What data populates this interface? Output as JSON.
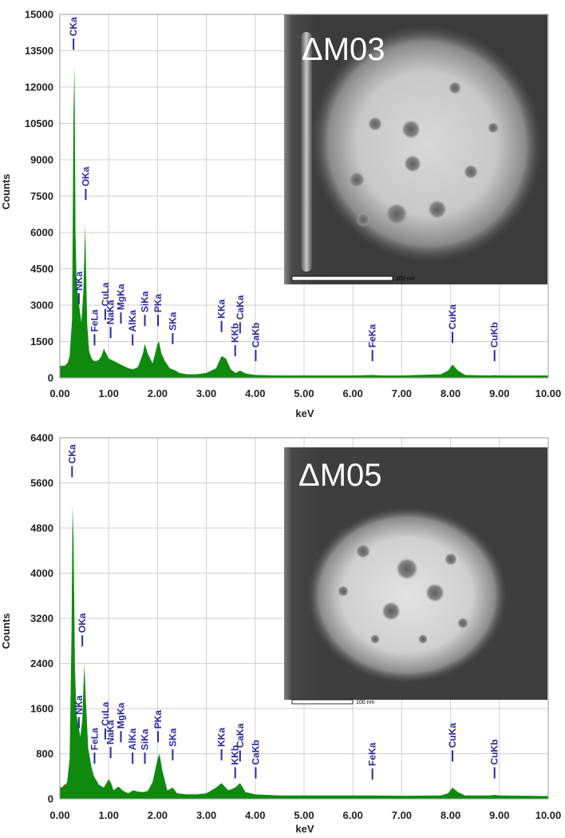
{
  "colors": {
    "spectrum_main": "#0f8a0f",
    "spectrum_background": "#e01010",
    "peak_label": "#2a2aa0",
    "grid": "#cfcfcf",
    "inset_bg": "#3a3a3a"
  },
  "chart_data": [
    {
      "type": "area",
      "xlabel": "keV",
      "ylabel": "Counts",
      "xlim": [
        0,
        10
      ],
      "ylim": [
        0,
        15000
      ],
      "x_ticks": [
        "0.00",
        "1.00",
        "2.00",
        "3.00",
        "4.00",
        "5.00",
        "6.00",
        "7.00",
        "8.00",
        "9.00",
        "10.00"
      ],
      "y_ticks": [
        "0",
        "1500",
        "3000",
        "4500",
        "6000",
        "7500",
        "9000",
        "10500",
        "12000",
        "13500",
        "15000"
      ],
      "grid": true,
      "inset": {
        "label": "ΔM03",
        "scale_bar": "100 nm"
      },
      "spectrum": {
        "x": [
          0.0,
          0.1,
          0.15,
          0.2,
          0.25,
          0.28,
          0.3,
          0.32,
          0.34,
          0.36,
          0.4,
          0.44,
          0.48,
          0.52,
          0.54,
          0.56,
          0.6,
          0.65,
          0.7,
          0.75,
          0.8,
          0.85,
          0.9,
          0.95,
          1.0,
          1.05,
          1.1,
          1.2,
          1.25,
          1.3,
          1.4,
          1.5,
          1.6,
          1.7,
          1.74,
          1.8,
          1.9,
          2.0,
          2.03,
          2.08,
          2.15,
          2.25,
          2.31,
          2.37,
          2.45,
          2.6,
          2.8,
          3.0,
          3.2,
          3.31,
          3.4,
          3.5,
          3.6,
          3.69,
          3.8,
          4.0,
          4.5,
          5.0,
          6.0,
          6.4,
          6.6,
          7.0,
          7.8,
          7.95,
          8.04,
          8.15,
          8.3,
          8.8,
          8.9,
          9.0,
          9.5,
          10.0
        ],
        "y": [
          500,
          500,
          550,
          900,
          2400,
          11000,
          12900,
          6000,
          4200,
          3600,
          2900,
          2300,
          3500,
          6300,
          4100,
          2200,
          1100,
          800,
          700,
          700,
          750,
          900,
          1200,
          1000,
          800,
          750,
          700,
          600,
          550,
          500,
          400,
          350,
          450,
          1000,
          1400,
          1000,
          600,
          1400,
          1500,
          1000,
          700,
          400,
          350,
          300,
          200,
          150,
          150,
          200,
          400,
          900,
          800,
          350,
          200,
          300,
          180,
          120,
          100,
          100,
          100,
          120,
          100,
          100,
          150,
          300,
          550,
          300,
          120,
          100,
          110,
          100,
          100,
          100
        ]
      },
      "background": {
        "x": [
          0.0,
          0.1,
          0.15,
          0.2,
          0.3,
          0.5,
          1.0,
          2.0,
          3.0,
          4.0,
          5.0,
          6.0,
          7.0,
          8.0,
          9.0,
          10.0
        ],
        "y": [
          400,
          500,
          600,
          400,
          300,
          250,
          150,
          120,
          100,
          90,
          80,
          70,
          65,
          70,
          60,
          55
        ]
      },
      "peak_labels": [
        {
          "text": "CKa",
          "x": 0.28,
          "y": 14000
        },
        {
          "text": "OKa",
          "x": 0.53,
          "y": 7800
        },
        {
          "text": "NKa",
          "x": 0.39,
          "y": 3500
        },
        {
          "text": "CuLa",
          "x": 0.93,
          "y": 2850
        },
        {
          "text": "MgKa",
          "x": 1.25,
          "y": 2700
        },
        {
          "text": "FeLa",
          "x": 0.71,
          "y": 1800
        },
        {
          "text": "NaKa",
          "x": 1.04,
          "y": 2100
        },
        {
          "text": "AlKa",
          "x": 1.49,
          "y": 1800
        },
        {
          "text": "SiKa",
          "x": 1.74,
          "y": 2600
        },
        {
          "text": "PKa",
          "x": 2.01,
          "y": 2600
        },
        {
          "text": "SKa",
          "x": 2.31,
          "y": 1850
        },
        {
          "text": "KKa",
          "x": 3.31,
          "y": 2350
        },
        {
          "text": "KKb",
          "x": 3.59,
          "y": 1350
        },
        {
          "text": "CaKa",
          "x": 3.69,
          "y": 2300
        },
        {
          "text": "CaKb",
          "x": 4.01,
          "y": 1150
        },
        {
          "text": "FeKa",
          "x": 6.4,
          "y": 1150
        },
        {
          "text": "CuKa",
          "x": 8.04,
          "y": 1900
        },
        {
          "text": "CuKb",
          "x": 8.9,
          "y": 1150
        }
      ]
    },
    {
      "type": "area",
      "xlabel": "keV",
      "ylabel": "Counts",
      "xlim": [
        0,
        10
      ],
      "ylim": [
        0,
        6400
      ],
      "x_ticks": [
        "0.00",
        "1.00",
        "2.00",
        "3.00",
        "4.00",
        "5.00",
        "6.00",
        "7.00",
        "8.00",
        "9.00",
        "10.00"
      ],
      "y_ticks": [
        "0",
        "800",
        "1600",
        "2400",
        "3200",
        "4000",
        "4800",
        "5600",
        "6400"
      ],
      "grid": true,
      "inset": {
        "label": "ΔM05",
        "scale_bar": "100 nm"
      },
      "spectrum": {
        "x": [
          0.0,
          0.1,
          0.15,
          0.2,
          0.24,
          0.26,
          0.28,
          0.31,
          0.34,
          0.38,
          0.42,
          0.46,
          0.5,
          0.53,
          0.58,
          0.65,
          0.7,
          0.8,
          0.9,
          1.0,
          1.05,
          1.1,
          1.2,
          1.3,
          1.4,
          1.5,
          1.6,
          1.7,
          1.8,
          1.9,
          2.0,
          2.04,
          2.1,
          2.2,
          2.31,
          2.4,
          2.6,
          2.8,
          3.0,
          3.2,
          3.31,
          3.45,
          3.59,
          3.69,
          3.8,
          4.0,
          4.5,
          5.0,
          6.0,
          6.4,
          7.0,
          7.8,
          7.95,
          8.04,
          8.15,
          8.3,
          8.8,
          8.9,
          9.0,
          10.0
        ],
        "y": [
          200,
          220,
          300,
          700,
          3000,
          5200,
          4600,
          2300,
          1500,
          1300,
          1100,
          1400,
          2400,
          1800,
          900,
          550,
          400,
          250,
          200,
          350,
          280,
          150,
          220,
          140,
          100,
          150,
          130,
          120,
          140,
          300,
          700,
          800,
          500,
          150,
          200,
          100,
          80,
          80,
          100,
          200,
          280,
          150,
          200,
          280,
          120,
          80,
          60,
          60,
          60,
          60,
          55,
          60,
          100,
          200,
          120,
          60,
          60,
          70,
          60,
          50
        ]
      },
      "background": {
        "x": [
          0.0,
          0.1,
          0.2,
          0.3,
          0.5,
          1.0,
          2.0,
          3.0,
          4.0,
          5.0,
          6.0,
          7.0,
          8.0,
          9.0,
          10.0
        ],
        "y": [
          150,
          260,
          180,
          120,
          90,
          60,
          55,
          50,
          45,
          40,
          38,
          36,
          40,
          40,
          35
        ]
      },
      "peak_labels": [
        {
          "text": "CKa",
          "x": 0.25,
          "y": 5900
        },
        {
          "text": "OKa",
          "x": 0.46,
          "y": 2900
        },
        {
          "text": "NKa",
          "x": 0.39,
          "y": 1450
        },
        {
          "text": "CuLa",
          "x": 0.93,
          "y": 1250
        },
        {
          "text": "MgKa",
          "x": 1.25,
          "y": 1200
        },
        {
          "text": "FeLa",
          "x": 0.71,
          "y": 820
        },
        {
          "text": "NaKa",
          "x": 1.04,
          "y": 920
        },
        {
          "text": "AlKa",
          "x": 1.49,
          "y": 820
        },
        {
          "text": "SiKa",
          "x": 1.74,
          "y": 820
        },
        {
          "text": "PKa",
          "x": 2.01,
          "y": 1200
        },
        {
          "text": "SKa",
          "x": 2.31,
          "y": 880
        },
        {
          "text": "KKa",
          "x": 3.31,
          "y": 880
        },
        {
          "text": "KKb",
          "x": 3.59,
          "y": 560
        },
        {
          "text": "CaKa",
          "x": 3.69,
          "y": 860
        },
        {
          "text": "CaKb",
          "x": 4.01,
          "y": 560
        },
        {
          "text": "FeKa",
          "x": 6.4,
          "y": 540
        },
        {
          "text": "CuKa",
          "x": 8.04,
          "y": 860
        },
        {
          "text": "CuKb",
          "x": 8.9,
          "y": 560
        }
      ]
    }
  ]
}
